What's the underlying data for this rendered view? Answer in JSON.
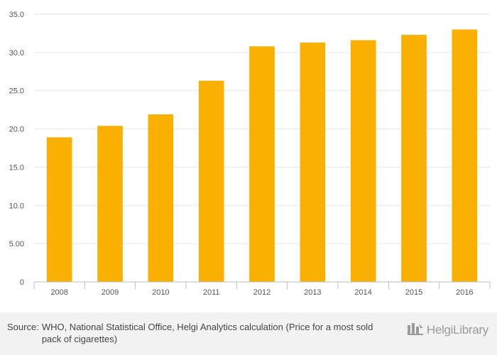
{
  "chart_data": {
    "type": "bar",
    "title": "",
    "xlabel": "",
    "ylabel": "",
    "categories": [
      "2008",
      "2009",
      "2010",
      "2011",
      "2012",
      "2013",
      "2014",
      "2015",
      "2016"
    ],
    "values": [
      18.9,
      20.4,
      21.9,
      26.3,
      30.8,
      31.3,
      31.6,
      32.3,
      33.0
    ],
    "ylim": [
      0,
      35
    ],
    "yticks": [
      0,
      5,
      10,
      15,
      20,
      25,
      30,
      35
    ],
    "ytick_labels": [
      "0",
      "5.00",
      "10.0",
      "15.0",
      "20.0",
      "25.0",
      "30.0",
      "35.0"
    ],
    "grid": true,
    "bar_color": "#F9B000",
    "grid_color": "#E6E6E6"
  },
  "footer": {
    "source_label": "Source:",
    "source_text": "WHO, National Statistical Office, Helgi Analytics calculation (Price for a most sold pack of cigarettes)",
    "logo_text": "HelgiLibrary",
    "logo_icon": "helgi-library-logo-icon"
  }
}
